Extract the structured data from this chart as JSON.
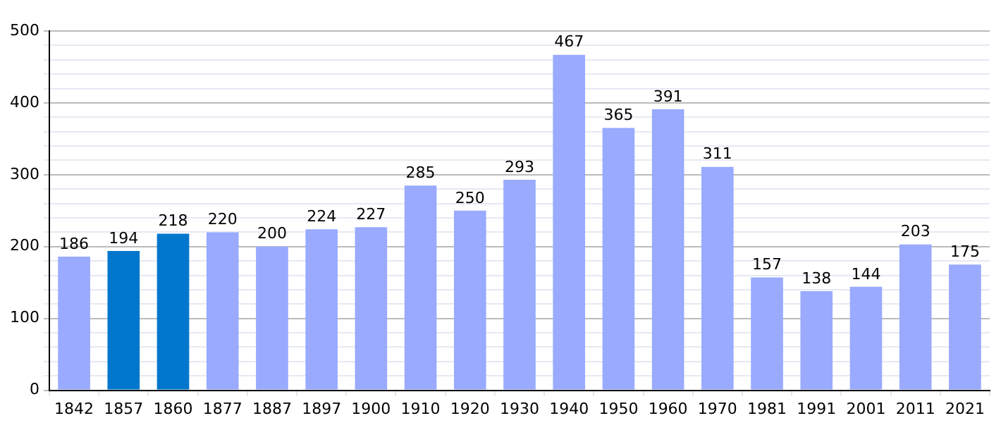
{
  "chart_data": {
    "type": "bar",
    "categories": [
      "1842",
      "1857",
      "1860",
      "1877",
      "1887",
      "1897",
      "1900",
      "1910",
      "1920",
      "1930",
      "1940",
      "1950",
      "1960",
      "1970",
      "1981",
      "1991",
      "2001",
      "2011",
      "2021"
    ],
    "values": [
      186,
      194,
      218,
      220,
      200,
      224,
      227,
      285,
      250,
      293,
      467,
      365,
      391,
      311,
      157,
      138,
      144,
      203,
      175
    ],
    "colors": [
      "#99aaff",
      "#0077cc",
      "#0077cc",
      "#99aaff",
      "#99aaff",
      "#99aaff",
      "#99aaff",
      "#99aaff",
      "#99aaff",
      "#99aaff",
      "#99aaff",
      "#99aaff",
      "#99aaff",
      "#99aaff",
      "#99aaff",
      "#99aaff",
      "#99aaff",
      "#99aaff",
      "#99aaff"
    ],
    "ylim": [
      0,
      500
    ],
    "yticks": [
      0,
      {
        "value": 20,
        "label": null
      },
      {
        "value": 40,
        "label": null
      },
      {
        "value": 60,
        "label": null
      },
      {
        "value": 80,
        "label": null
      },
      100,
      {
        "value": 120,
        "label": null
      },
      {
        "value": 140,
        "label": null
      },
      {
        "value": 160,
        "label": null
      },
      {
        "value": 180,
        "label": null
      },
      200,
      {
        "value": 220,
        "label": null
      },
      {
        "value": 240,
        "label": null
      },
      {
        "value": 260,
        "label": null
      },
      {
        "value": 280,
        "label": null
      },
      300,
      {
        "value": 320,
        "label": null
      },
      {
        "value": 340,
        "label": null
      },
      {
        "value": 360,
        "label": null
      },
      {
        "value": 380,
        "label": null
      },
      400,
      {
        "value": 420,
        "label": null
      },
      {
        "value": 440,
        "label": null
      },
      {
        "value": 460,
        "label": null
      },
      {
        "value": 480,
        "label": null
      },
      500
    ],
    "grid": true,
    "data_labels": true,
    "legend": false
  }
}
